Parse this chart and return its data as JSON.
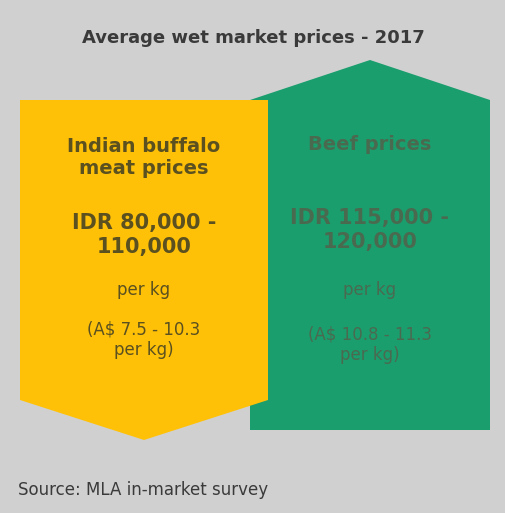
{
  "title": "Average wet market prices - 2017",
  "source": "Source: MLA in-market survey",
  "background_color": "#d0d0d0",
  "title_fontsize": 13,
  "source_fontsize": 12,
  "left_panel": {
    "color": "#FFC107",
    "label": "Indian buffalo\nmeat prices",
    "label_fontsize": 14,
    "idr_text": "IDR 80,000 -\n110,000",
    "idr_fontsize": 15,
    "per_kg1": "per kg",
    "aud_text": "(A$ 7.5 - 10.3\nper kg)",
    "sub_fontsize": 12,
    "text_color": "#5a5020"
  },
  "right_panel": {
    "color": "#1a9e6e",
    "label": "Beef prices",
    "label_fontsize": 14,
    "idr_text": "IDR 115,000 -\n120,000",
    "idr_fontsize": 15,
    "per_kg1": "per kg",
    "aud_text": "(A$ 10.8 - 11.3\nper kg)",
    "sub_fontsize": 12,
    "text_color": "#4a6a50"
  }
}
